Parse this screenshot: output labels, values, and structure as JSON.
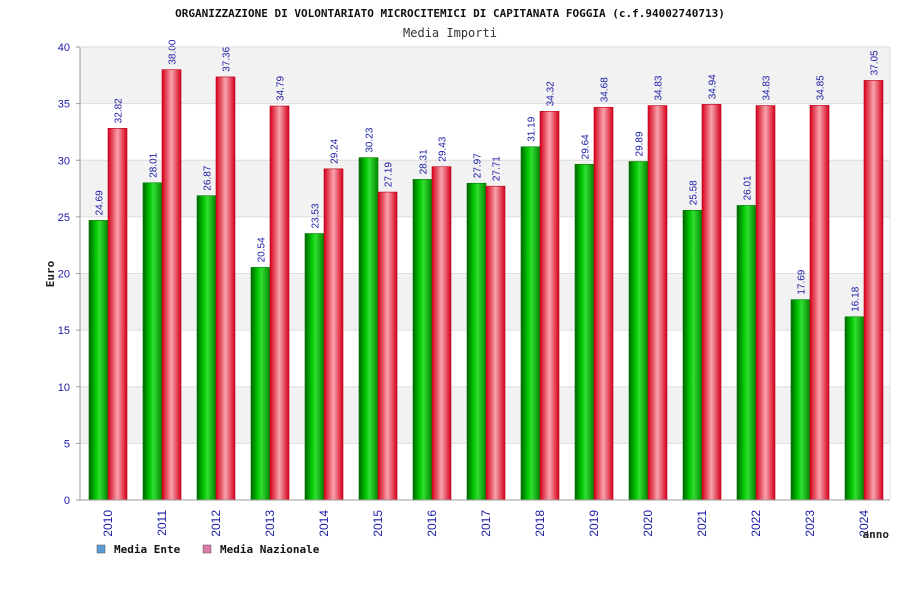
{
  "chart_data": {
    "type": "bar",
    "title": "ORGANIZZAZIONE DI VOLONTARIATO MICROCITEMICI DI CAPITANATA FOGGIA (c.f.94002740713)",
    "subtitle": "Media Importi",
    "xlabel": "anno",
    "ylabel": "Euro",
    "ylim": [
      0,
      40
    ],
    "yticks": [
      0,
      5,
      10,
      15,
      20,
      25,
      30,
      35,
      40
    ],
    "grid": true,
    "legend_position": "bottom-left",
    "categories": [
      "2010",
      "2011",
      "2012",
      "2013",
      "2014",
      "2015",
      "2016",
      "2017",
      "2018",
      "2019",
      "2020",
      "2021",
      "2022",
      "2023",
      "2024"
    ],
    "series": [
      {
        "name": "Media Ente",
        "legend_color": "#5b9bd5",
        "color": "#00b000",
        "values": [
          24.69,
          28.01,
          26.87,
          20.54,
          23.53,
          30.23,
          28.31,
          27.97,
          31.19,
          29.64,
          29.89,
          25.58,
          26.01,
          17.69,
          16.18
        ],
        "labels": [
          "24.69",
          "28.01",
          "26.87",
          "20.54",
          "23.53",
          "30.23",
          "28.31",
          "27.97",
          "31.19",
          "29.64",
          "29.89",
          "25.58",
          "26.01",
          "17.69",
          "16.18"
        ]
      },
      {
        "name": "Media Nazionale",
        "legend_color": "#d97aa8",
        "color": "#ee2233",
        "values": [
          32.82,
          38.0,
          37.36,
          34.79,
          29.24,
          27.19,
          29.43,
          27.71,
          34.32,
          34.68,
          34.83,
          34.94,
          34.83,
          34.85,
          37.05
        ],
        "labels": [
          "32.82",
          "38.00",
          "37.36",
          "34.79",
          "29.24",
          "27.19",
          "29.43",
          "27.71",
          "34.32",
          "34.68",
          "34.83",
          "34.94",
          "34.83",
          "34.85",
          "37.05"
        ]
      }
    ]
  }
}
